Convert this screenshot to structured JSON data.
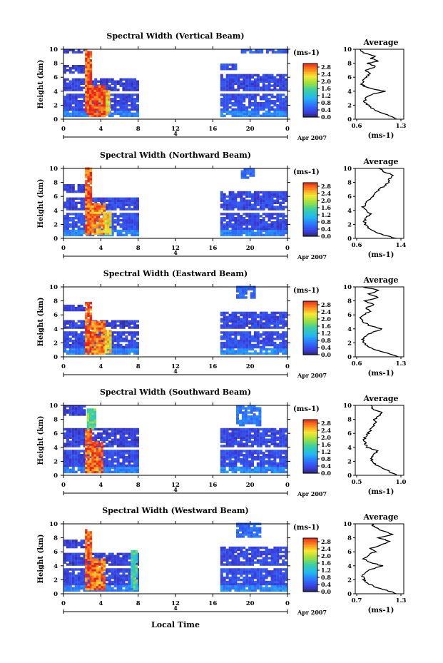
{
  "chart_data": [
    {
      "type": "heatmap",
      "title": "Spectral Width (Vertical Beam)",
      "ylabel": "Height (km)",
      "xticks": [
        "0",
        "4",
        "8",
        "12",
        "16",
        "20",
        "0"
      ],
      "yticks": [
        "0",
        "2",
        "4",
        "6",
        "8",
        "10"
      ],
      "ylim": [
        0,
        10
      ],
      "xlim": [
        0,
        24
      ],
      "date_day": "4",
      "date_month": "Apr 2007",
      "colorbar": {
        "unit": "(ms-1)",
        "ticks": [
          "0.0",
          "0.4",
          "0.8",
          "1.2",
          "1.6",
          "2.0",
          "2.4",
          "2.8"
        ],
        "range": [
          0,
          3.0
        ]
      },
      "average": {
        "title": "Average",
        "xticks": [
          "0.6",
          "1.3"
        ],
        "xlim": [
          0.6,
          1.3
        ],
        "xlabel": "(ms-1)",
        "profile": [
          [
            0.0,
            1.25
          ],
          [
            0.5,
            1.12
          ],
          [
            1.0,
            0.95
          ],
          [
            1.5,
            0.85
          ],
          [
            2.0,
            0.78
          ],
          [
            2.5,
            0.72
          ],
          [
            3.0,
            0.74
          ],
          [
            3.5,
            0.82
          ],
          [
            4.0,
            1.05
          ],
          [
            4.3,
            0.85
          ],
          [
            4.7,
            0.72
          ],
          [
            5.0,
            0.68
          ],
          [
            5.5,
            0.7
          ],
          [
            6.0,
            0.74
          ],
          [
            6.5,
            0.82
          ],
          [
            7.0,
            0.72
          ],
          [
            7.5,
            0.9
          ],
          [
            8.0,
            0.78
          ],
          [
            8.3,
            0.95
          ],
          [
            8.7,
            0.82
          ],
          [
            9.0,
            0.88
          ],
          [
            9.5,
            0.7
          ],
          [
            10.0,
            0.65
          ]
        ]
      },
      "bands": [
        {
          "x": [
            2.3,
            2.9
          ],
          "y": [
            1.0,
            10.0
          ],
          "level": 2.8
        },
        {
          "x": [
            2.5,
            4.5
          ],
          "y": [
            0.3,
            4.5
          ],
          "level": 2.9
        },
        {
          "x": [
            4.5,
            5.0
          ],
          "y": [
            0.5,
            4.0
          ],
          "level": 2.3
        }
      ],
      "blocks": [
        {
          "x": [
            0.0,
            8.0
          ],
          "y": [
            0.3,
            3.5
          ],
          "level": 0.25
        },
        {
          "x": [
            0.0,
            8.0
          ],
          "y": [
            4.0,
            5.5
          ],
          "level": 0.2
        },
        {
          "x": [
            0.0,
            2.3
          ],
          "y": [
            6.5,
            7.5
          ],
          "level": 0.2
        },
        {
          "x": [
            0.0,
            2.3
          ],
          "y": [
            9.4,
            10.0
          ],
          "level": 0.15
        },
        {
          "x": [
            16.8,
            24.0
          ],
          "y": [
            0.3,
            3.5
          ],
          "level": 0.3
        },
        {
          "x": [
            16.8,
            24.0
          ],
          "y": [
            4.0,
            6.3
          ],
          "level": 0.25
        },
        {
          "x": [
            16.8,
            18.5
          ],
          "y": [
            7.0,
            7.8
          ],
          "level": 0.3
        },
        {
          "x": [
            19.0,
            24.0
          ],
          "y": [
            9.4,
            10.0
          ],
          "level": 0.4
        }
      ]
    },
    {
      "type": "heatmap",
      "title": "Spectral Width (Northward Beam)",
      "ylabel": "Height (km)",
      "xticks": [
        "0",
        "4",
        "8",
        "12",
        "16",
        "20",
        "0"
      ],
      "yticks": [
        "0",
        "2",
        "4",
        "6",
        "8",
        "10"
      ],
      "ylim": [
        0,
        10
      ],
      "xlim": [
        0,
        24
      ],
      "date_day": "4",
      "date_month": "Apr 2007",
      "colorbar": {
        "unit": "(ms-1)",
        "ticks": [
          "0.0",
          "0.4",
          "0.8",
          "1.2",
          "1.6",
          "2.0",
          "2.4",
          "2.8"
        ],
        "range": [
          0,
          3.0
        ]
      },
      "average": {
        "title": "Average",
        "xticks": [
          "0.6",
          "1.4"
        ],
        "xlim": [
          0.6,
          1.4
        ],
        "xlabel": "(ms-1)",
        "profile": [
          [
            0.0,
            1.3
          ],
          [
            0.5,
            1.1
          ],
          [
            1.0,
            0.9
          ],
          [
            1.5,
            0.8
          ],
          [
            2.0,
            0.75
          ],
          [
            2.5,
            0.74
          ],
          [
            3.0,
            0.78
          ],
          [
            3.5,
            0.85
          ],
          [
            4.0,
            0.78
          ],
          [
            4.5,
            0.72
          ],
          [
            5.0,
            0.76
          ],
          [
            5.5,
            0.82
          ],
          [
            6.0,
            0.9
          ],
          [
            6.5,
            0.95
          ],
          [
            7.0,
            1.0
          ],
          [
            7.5,
            1.1
          ],
          [
            8.0,
            1.18
          ],
          [
            8.5,
            1.2
          ],
          [
            9.0,
            1.25
          ],
          [
            9.5,
            1.1
          ],
          [
            10.0,
            1.0
          ]
        ]
      },
      "bands": [
        {
          "x": [
            2.3,
            3.0
          ],
          "y": [
            0.5,
            10.0
          ],
          "level": 2.8
        },
        {
          "x": [
            3.0,
            4.4
          ],
          "y": [
            0.5,
            4.8
          ],
          "level": 2.6
        },
        {
          "x": [
            4.4,
            5.0
          ],
          "y": [
            0.5,
            3.5
          ],
          "level": 2.2
        }
      ],
      "blocks": [
        {
          "x": [
            0.0,
            8.0
          ],
          "y": [
            0.3,
            3.5
          ],
          "level": 0.3
        },
        {
          "x": [
            0.0,
            8.0
          ],
          "y": [
            4.0,
            5.5
          ],
          "level": 0.25
        },
        {
          "x": [
            0.0,
            2.3
          ],
          "y": [
            6.5,
            7.5
          ],
          "level": 0.2
        },
        {
          "x": [
            16.8,
            24.0
          ],
          "y": [
            0.3,
            3.5
          ],
          "level": 0.25
        },
        {
          "x": [
            16.8,
            24.0
          ],
          "y": [
            4.0,
            6.5
          ],
          "level": 0.25
        },
        {
          "x": [
            19.0,
            20.5
          ],
          "y": [
            8.5,
            10.0
          ],
          "level": 0.5
        }
      ]
    },
    {
      "type": "heatmap",
      "title": "Spectral Width (Eastward Beam)",
      "ylabel": "Height (km)",
      "xticks": [
        "0",
        "4",
        "8",
        "12",
        "16",
        "20",
        "0"
      ],
      "yticks": [
        "0",
        "2",
        "4",
        "6",
        "8",
        "10"
      ],
      "ylim": [
        0,
        10
      ],
      "xlim": [
        0,
        24
      ],
      "date_day": "4",
      "date_month": "Apr 2007",
      "colorbar": {
        "unit": "(ms-1)",
        "ticks": [
          "0.0",
          "0.4",
          "0.8",
          "1.2",
          "1.6",
          "2.0",
          "2.4",
          "2.8"
        ],
        "range": [
          0,
          3.0
        ]
      },
      "average": {
        "title": "Average",
        "xticks": [
          "0.6",
          "1.3"
        ],
        "xlim": [
          0.6,
          1.3
        ],
        "xlabel": "(ms-1)",
        "profile": [
          [
            0.0,
            1.25
          ],
          [
            0.5,
            1.1
          ],
          [
            1.0,
            0.9
          ],
          [
            1.5,
            0.78
          ],
          [
            2.0,
            0.72
          ],
          [
            2.5,
            0.7
          ],
          [
            3.0,
            0.75
          ],
          [
            3.5,
            0.85
          ],
          [
            4.0,
            1.0
          ],
          [
            4.5,
            0.8
          ],
          [
            5.0,
            0.7
          ],
          [
            5.5,
            0.66
          ],
          [
            6.0,
            0.7
          ],
          [
            6.5,
            0.82
          ],
          [
            7.0,
            0.74
          ],
          [
            7.5,
            0.88
          ],
          [
            8.0,
            0.72
          ],
          [
            8.5,
            0.95
          ],
          [
            9.0,
            0.8
          ],
          [
            9.5,
            0.95
          ],
          [
            10.0,
            0.7
          ]
        ]
      },
      "bands": [
        {
          "x": [
            2.3,
            3.0
          ],
          "y": [
            0.3,
            7.5
          ],
          "level": 2.8
        },
        {
          "x": [
            3.0,
            4.4
          ],
          "y": [
            0.3,
            4.8
          ],
          "level": 2.7
        },
        {
          "x": [
            4.4,
            5.0
          ],
          "y": [
            0.5,
            3.5
          ],
          "level": 2.3
        }
      ],
      "blocks": [
        {
          "x": [
            0.0,
            8.0
          ],
          "y": [
            0.3,
            3.5
          ],
          "level": 0.25
        },
        {
          "x": [
            0.0,
            8.0
          ],
          "y": [
            4.0,
            5.0
          ],
          "level": 0.2
        },
        {
          "x": [
            0.0,
            2.3
          ],
          "y": [
            6.5,
            7.3
          ],
          "level": 0.2
        },
        {
          "x": [
            16.8,
            24.0
          ],
          "y": [
            0.3,
            3.5
          ],
          "level": 0.3
        },
        {
          "x": [
            16.8,
            24.0
          ],
          "y": [
            4.0,
            6.3
          ],
          "level": 0.25
        },
        {
          "x": [
            18.5,
            20.5
          ],
          "y": [
            8.3,
            10.0
          ],
          "level": 0.5
        }
      ]
    },
    {
      "type": "heatmap",
      "title": "Spectral Width (Southward Beam)",
      "ylabel": "Height (km)",
      "xticks": [
        "0",
        "4",
        "8",
        "12",
        "16",
        "20",
        "0"
      ],
      "yticks": [
        "0",
        "2",
        "4",
        "6",
        "8",
        "10"
      ],
      "ylim": [
        0,
        10
      ],
      "xlim": [
        0,
        24
      ],
      "date_day": "4",
      "date_month": "Apr 2007",
      "colorbar": {
        "unit": "(ms-1)",
        "ticks": [
          "0.0",
          "0.4",
          "0.8",
          "1.2",
          "1.6",
          "2.0",
          "2.4",
          "2.8"
        ],
        "range": [
          0,
          3.0
        ]
      },
      "average": {
        "title": "Average",
        "xticks": [
          "0.5",
          "1.0"
        ],
        "xlim": [
          0.5,
          1.0
        ],
        "xlabel": "(ms-1)",
        "profile": [
          [
            0.0,
            0.95
          ],
          [
            0.5,
            0.88
          ],
          [
            1.0,
            0.8
          ],
          [
            1.5,
            0.72
          ],
          [
            2.0,
            0.68
          ],
          [
            2.5,
            0.66
          ],
          [
            3.0,
            0.7
          ],
          [
            3.5,
            0.74
          ],
          [
            4.0,
            0.62
          ],
          [
            4.5,
            0.6
          ],
          [
            5.0,
            0.58
          ],
          [
            5.5,
            0.6
          ],
          [
            6.0,
            0.63
          ],
          [
            6.5,
            0.66
          ],
          [
            7.0,
            0.68
          ],
          [
            7.5,
            0.72
          ],
          [
            8.0,
            0.7
          ],
          [
            8.5,
            0.75
          ],
          [
            9.0,
            0.78
          ],
          [
            9.5,
            0.68
          ],
          [
            10.0,
            0.66
          ]
        ]
      },
      "bands": [
        {
          "x": [
            2.3,
            3.0
          ],
          "y": [
            0.3,
            6.5
          ],
          "level": 2.7
        },
        {
          "x": [
            3.0,
            4.2
          ],
          "y": [
            0.3,
            4.5
          ],
          "level": 2.8
        },
        {
          "x": [
            2.5,
            3.5
          ],
          "y": [
            6.5,
            9.5
          ],
          "level": 1.6
        }
      ],
      "blocks": [
        {
          "x": [
            0.0,
            8.0
          ],
          "y": [
            0.3,
            3.5
          ],
          "level": 0.25
        },
        {
          "x": [
            0.0,
            8.0
          ],
          "y": [
            4.0,
            6.5
          ],
          "level": 0.2
        },
        {
          "x": [
            0.0,
            2.3
          ],
          "y": [
            8.5,
            10.0
          ],
          "level": 0.2
        },
        {
          "x": [
            16.8,
            24.0
          ],
          "y": [
            0.3,
            3.3
          ],
          "level": 0.3
        },
        {
          "x": [
            16.8,
            24.0
          ],
          "y": [
            4.0,
            6.5
          ],
          "level": 0.25
        },
        {
          "x": [
            18.5,
            21.0
          ],
          "y": [
            7.0,
            10.0
          ],
          "level": 0.6
        }
      ]
    },
    {
      "type": "heatmap",
      "title": "Spectral Width (Westward Beam)",
      "ylabel": "Height (km)",
      "xlabel": "Local Time",
      "xticks": [
        "0",
        "4",
        "8",
        "12",
        "16",
        "20",
        "0"
      ],
      "yticks": [
        "0",
        "2",
        "4",
        "6",
        "8",
        "10"
      ],
      "ylim": [
        0,
        10
      ],
      "xlim": [
        0,
        24
      ],
      "date_day": "4",
      "date_month": "Apr 2007",
      "colorbar": {
        "unit": "(ms-1)",
        "ticks": [
          "0.0",
          "0.4",
          "0.8",
          "1.2",
          "1.6",
          "2.0",
          "2.4",
          "2.8"
        ],
        "range": [
          0,
          3.0
        ]
      },
      "average": {
        "title": "Average",
        "xticks": [
          "0.7",
          "1.3"
        ],
        "xlim": [
          0.7,
          1.3
        ],
        "xlabel": "(ms-1)",
        "profile": [
          [
            0.0,
            1.25
          ],
          [
            0.5,
            1.1
          ],
          [
            1.0,
            0.95
          ],
          [
            1.5,
            0.85
          ],
          [
            2.0,
            0.8
          ],
          [
            2.5,
            0.78
          ],
          [
            3.0,
            0.82
          ],
          [
            3.5,
            0.9
          ],
          [
            4.0,
            1.05
          ],
          [
            4.5,
            0.88
          ],
          [
            5.0,
            0.8
          ],
          [
            5.5,
            0.85
          ],
          [
            6.0,
            0.95
          ],
          [
            6.5,
            0.88
          ],
          [
            7.0,
            1.05
          ],
          [
            7.5,
            1.15
          ],
          [
            8.0,
            1.0
          ],
          [
            8.5,
            1.2
          ],
          [
            9.0,
            1.05
          ],
          [
            9.5,
            0.95
          ],
          [
            10.0,
            0.9
          ]
        ]
      },
      "bands": [
        {
          "x": [
            2.3,
            3.0
          ],
          "y": [
            0.5,
            9.0
          ],
          "level": 2.8
        },
        {
          "x": [
            3.0,
            4.3
          ],
          "y": [
            0.5,
            4.8
          ],
          "level": 2.7
        },
        {
          "x": [
            7.2,
            7.8
          ],
          "y": [
            0.5,
            6.0
          ],
          "level": 1.4
        }
      ],
      "blocks": [
        {
          "x": [
            0.0,
            8.0
          ],
          "y": [
            0.3,
            3.5
          ],
          "level": 0.25
        },
        {
          "x": [
            0.0,
            8.0
          ],
          "y": [
            4.0,
            5.5
          ],
          "level": 0.2
        },
        {
          "x": [
            0.0,
            2.3
          ],
          "y": [
            6.5,
            7.5
          ],
          "level": 0.2
        },
        {
          "x": [
            16.8,
            24.0
          ],
          "y": [
            0.3,
            3.5
          ],
          "level": 0.3
        },
        {
          "x": [
            16.8,
            24.0
          ],
          "y": [
            4.0,
            6.5
          ],
          "level": 0.25
        },
        {
          "x": [
            18.5,
            21.0
          ],
          "y": [
            8.0,
            10.0
          ],
          "level": 0.5
        }
      ]
    }
  ]
}
